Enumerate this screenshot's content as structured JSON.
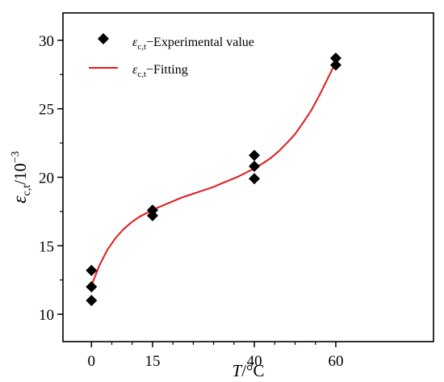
{
  "chart_data": {
    "type": "scatter",
    "xlabel": {
      "symbol": "T",
      "unit": "/°C"
    },
    "ylabel": {
      "symbol": "ε",
      "subscript": "c,t",
      "unit": "/10",
      "exponent": "−3"
    },
    "xlim": [
      -7,
      84
    ],
    "ylim": [
      8,
      32
    ],
    "x_ticks": [
      0,
      15,
      40,
      60
    ],
    "x_tick_labels": [
      "0",
      "15",
      "40",
      "60"
    ],
    "x_minor_ticks": [
      5,
      10,
      20,
      25,
      30,
      35,
      45,
      50,
      55
    ],
    "y_ticks": [
      10,
      15,
      20,
      25,
      30
    ],
    "y_tick_labels": [
      "10",
      "15",
      "20",
      "25",
      "30"
    ],
    "grid": false,
    "legend_position": "top-left",
    "series": [
      {
        "name": "Experimental value",
        "legend_symbol": "ε",
        "legend_subscript": "c,t",
        "legend_text": "−Experimental value",
        "kind": "scatter",
        "marker": "diamond",
        "color": "#000000",
        "points": [
          [
            0,
            11.0
          ],
          [
            0,
            12.0
          ],
          [
            0,
            13.2
          ],
          [
            15,
            17.2
          ],
          [
            15,
            17.6
          ],
          [
            40,
            19.9
          ],
          [
            40,
            20.8
          ],
          [
            40,
            21.6
          ],
          [
            60,
            28.2
          ],
          [
            60,
            28.7
          ]
        ]
      },
      {
        "name": "Fitting",
        "legend_symbol": "ε",
        "legend_subscript": "c,t",
        "legend_text": "−Fitting",
        "kind": "line",
        "color": "#e31a1c",
        "points": [
          [
            0,
            12.1
          ],
          [
            2,
            13.6
          ],
          [
            4,
            14.75
          ],
          [
            6,
            15.6
          ],
          [
            8,
            16.25
          ],
          [
            10,
            16.75
          ],
          [
            12,
            17.15
          ],
          [
            14,
            17.45
          ],
          [
            16,
            17.75
          ],
          [
            18,
            18.0
          ],
          [
            20,
            18.25
          ],
          [
            22,
            18.5
          ],
          [
            24,
            18.7
          ],
          [
            26,
            18.9
          ],
          [
            28,
            19.1
          ],
          [
            30,
            19.3
          ],
          [
            32,
            19.55
          ],
          [
            34,
            19.8
          ],
          [
            36,
            20.05
          ],
          [
            38,
            20.35
          ],
          [
            40,
            20.65
          ],
          [
            42,
            21.0
          ],
          [
            44,
            21.4
          ],
          [
            46,
            21.9
          ],
          [
            48,
            22.5
          ],
          [
            50,
            23.15
          ],
          [
            52,
            24.0
          ],
          [
            54,
            24.9
          ],
          [
            56,
            26.0
          ],
          [
            58,
            27.2
          ],
          [
            60,
            28.4
          ]
        ]
      }
    ]
  }
}
